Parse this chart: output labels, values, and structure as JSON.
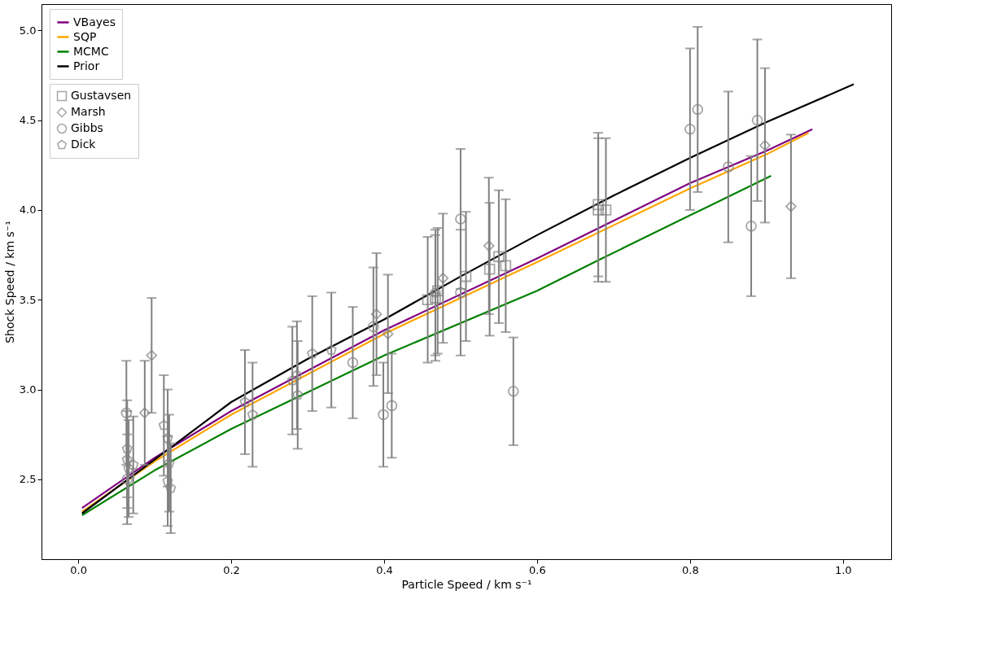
{
  "chart_data": {
    "type": "scatter",
    "xlabel": "Particle Speed / km s⁻¹",
    "ylabel": "Shock Speed / km s⁻¹",
    "xlim": [
      -0.048,
      1.063
    ],
    "ylim": [
      2.055,
      5.147
    ],
    "xticks": [
      {
        "value": 0.0,
        "label": "0.0"
      },
      0.2,
      0.4,
      0.6,
      0.8,
      {
        "value": 1.0,
        "label": "1.0"
      }
    ],
    "yticks": [
      {
        "value": 2.5,
        "label": "2.5"
      },
      {
        "value": 3.0,
        "label": "3.0"
      },
      {
        "value": 3.5,
        "label": "3.5"
      },
      {
        "value": 4.0,
        "label": "4.0"
      },
      {
        "value": 4.5,
        "label": "4.5"
      },
      {
        "value": 5.0,
        "label": "5.0"
      }
    ],
    "grid": false,
    "legend": "top left",
    "series": [
      {
        "name": "VBayes",
        "type": "line",
        "color": "#800080",
        "x": [
          0.005,
          0.1,
          0.2,
          0.4,
          0.6,
          0.8,
          0.9,
          0.96
        ],
        "values": [
          2.34,
          2.62,
          2.88,
          3.33,
          3.73,
          4.15,
          4.33,
          4.45
        ]
      },
      {
        "name": "SQP",
        "type": "line",
        "color": "#ffa500",
        "x": [
          0.005,
          0.1,
          0.2,
          0.4,
          0.6,
          0.8,
          0.9,
          0.955
        ],
        "values": [
          2.32,
          2.6,
          2.86,
          3.31,
          3.71,
          4.12,
          4.31,
          4.43
        ]
      },
      {
        "name": "MCMC",
        "type": "line",
        "color": "#008000",
        "x": [
          0.005,
          0.1,
          0.2,
          0.4,
          0.6,
          0.68,
          0.8,
          0.906
        ],
        "values": [
          2.3,
          2.55,
          2.78,
          3.19,
          3.55,
          3.72,
          3.97,
          4.19
        ]
      },
      {
        "name": "Prior",
        "type": "line",
        "color": "#000000",
        "x": [
          0.005,
          0.1,
          0.2,
          0.3,
          0.4,
          0.5,
          0.6,
          0.7,
          0.8,
          0.9,
          1.014
        ],
        "values": [
          2.31,
          2.61,
          2.93,
          3.17,
          3.39,
          3.63,
          3.86,
          4.08,
          4.29,
          4.49,
          4.7
        ]
      },
      {
        "name": "Gustavsen",
        "marker": "square",
        "color": "#808080",
        "x": [
          0.457,
          0.467,
          0.47,
          0.507,
          0.538,
          0.55,
          0.559,
          0.68,
          0.68,
          0.69
        ],
        "values": [
          3.5,
          3.51,
          3.55,
          3.63,
          3.67,
          3.74,
          3.69,
          4.03,
          4.0,
          4.0
        ],
        "errors": [
          0.35,
          0.35,
          0.35,
          0.36,
          0.37,
          0.37,
          0.37,
          0.4,
          0.4,
          0.4
        ]
      },
      {
        "name": "Marsh",
        "marker": "diamond",
        "color": "#808080",
        "x": [
          0.087,
          0.096,
          0.39,
          0.405,
          0.477,
          0.537,
          0.898,
          0.932
        ],
        "values": [
          2.87,
          3.19,
          3.42,
          3.31,
          3.62,
          3.8,
          4.36,
          4.02
        ],
        "errors": [
          0.29,
          0.32,
          0.34,
          0.33,
          0.36,
          0.38,
          0.43,
          0.4
        ]
      },
      {
        "name": "Gibbs",
        "marker": "circle",
        "color": "#808080",
        "x": [
          0.063,
          0.064,
          0.359,
          0.386,
          0.399,
          0.41,
          0.5,
          0.5,
          0.569,
          0.8,
          0.81,
          0.85,
          0.88,
          0.888
        ],
        "values": [
          2.87,
          2.5,
          3.15,
          3.35,
          2.86,
          2.91,
          3.95,
          3.54,
          2.99,
          4.45,
          4.56,
          4.24,
          3.91,
          4.5
        ],
        "errors": [
          0.29,
          0.25,
          0.31,
          0.33,
          0.29,
          0.29,
          0.39,
          0.35,
          0.3,
          0.45,
          0.46,
          0.42,
          0.39,
          0.45
        ]
      },
      {
        "name": "Dick",
        "color": "#808080",
        "x": [
          0.064,
          0.064,
          0.066,
          0.072,
          0.112,
          0.117,
          0.119,
          0.121,
          0.117,
          0.218,
          0.228,
          0.28,
          0.286,
          0.287,
          0.306,
          0.331,
          0.467
        ],
        "values": [
          2.67,
          2.61,
          2.56,
          2.58,
          2.8,
          2.73,
          2.59,
          2.45,
          2.49,
          2.93,
          2.86,
          3.05,
          3.08,
          2.97,
          3.2,
          3.22,
          3.54
        ],
        "errors": [
          0.27,
          0.27,
          0.27,
          0.27,
          0.28,
          0.27,
          0.27,
          0.25,
          0.25,
          0.29,
          0.29,
          0.3,
          0.3,
          0.3,
          0.32,
          0.32,
          0.35
        ]
      }
    ]
  }
}
